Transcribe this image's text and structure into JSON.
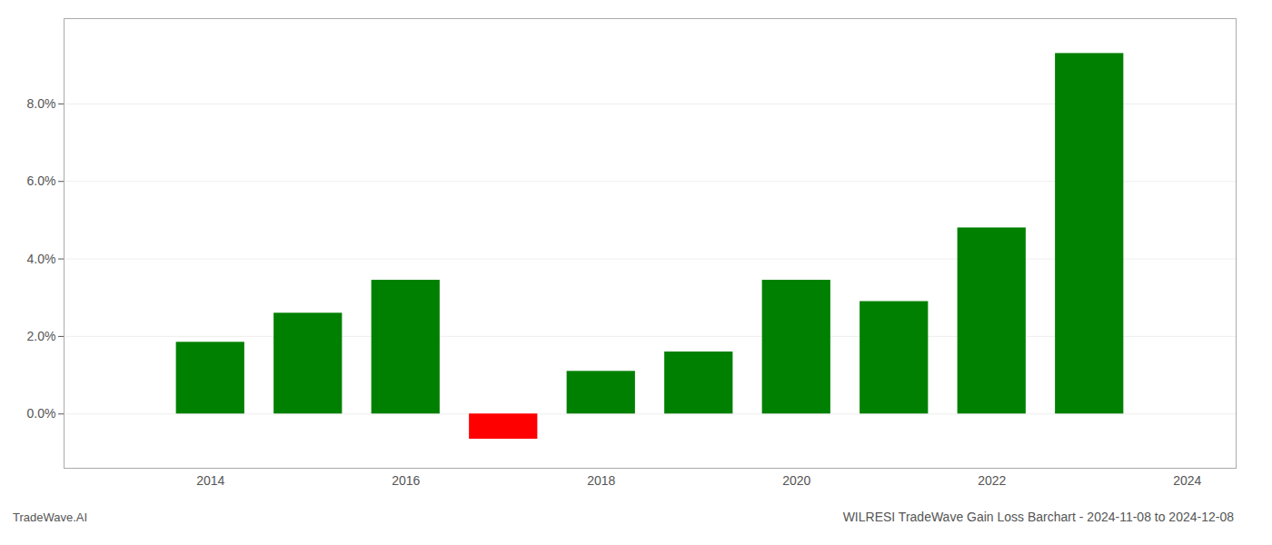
{
  "chart_data": {
    "type": "bar",
    "title": "WILRESI TradeWave Gain Loss Barchart - 2024-11-08 to 2024-12-08",
    "annotations": [
      "TradeWave.AI"
    ],
    "x": [
      2014,
      2015,
      2016,
      2017,
      2018,
      2019,
      2020,
      2021,
      2022,
      2023
    ],
    "values": [
      0.0185,
      0.026,
      0.0345,
      -0.0065,
      0.011,
      0.016,
      0.0345,
      0.029,
      0.048,
      0.093
    ],
    "colors": [
      "#008000",
      "#008000",
      "#008000",
      "#ff0000",
      "#008000",
      "#008000",
      "#008000",
      "#008000",
      "#008000",
      "#008000"
    ],
    "xlim": [
      2012.5,
      2024.5
    ],
    "xticks": [
      2014,
      2016,
      2018,
      2020,
      2022,
      2024
    ],
    "ylim": [
      -0.014,
      0.102
    ],
    "yticks": [
      {
        "value": 0.0,
        "label": "0.0%"
      },
      {
        "value": 0.02,
        "label": "2.0%"
      },
      {
        "value": 0.04,
        "label": "4.0%"
      },
      {
        "value": 0.06,
        "label": "6.0%"
      },
      {
        "value": 0.08,
        "label": "8.0%"
      }
    ],
    "grid": true
  }
}
